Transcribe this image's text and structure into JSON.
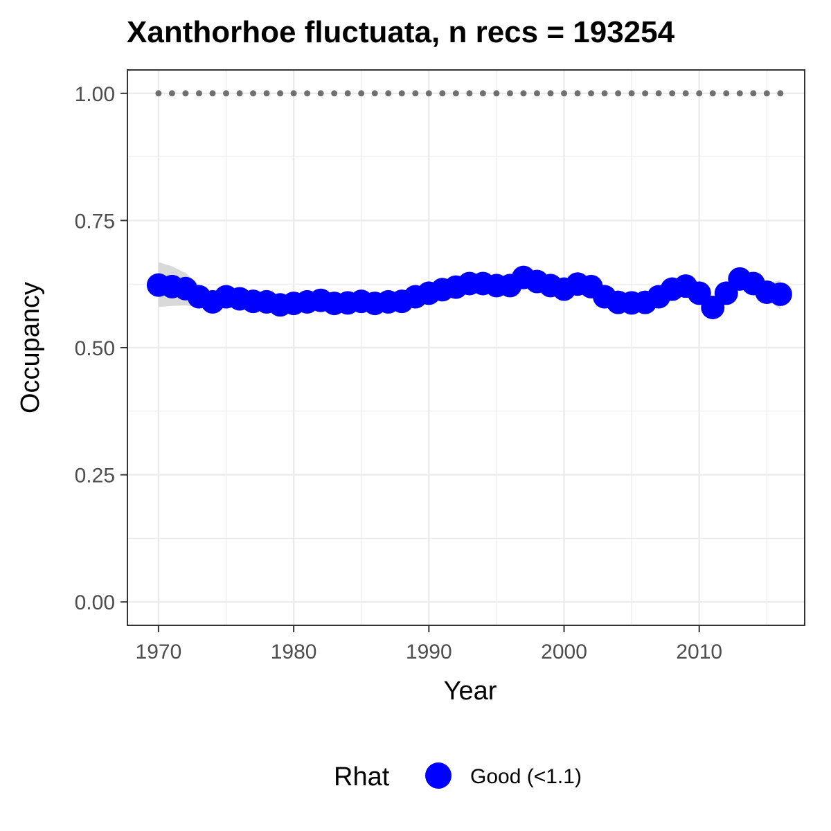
{
  "chart_data": {
    "type": "line",
    "title": "Xanthorhoe fluctuata, n recs = 193254",
    "xlabel": "Year",
    "ylabel": "Occupancy",
    "xlim": [
      1967.7,
      2017.8
    ],
    "ylim": [
      -0.046,
      1.046
    ],
    "x_ticks": [
      1970,
      1980,
      1990,
      2000,
      2010
    ],
    "x_tick_labels": [
      "1970",
      "1980",
      "1990",
      "2000",
      "2010"
    ],
    "y_ticks": [
      0,
      0.25,
      0.5,
      0.75,
      1.0
    ],
    "y_tick_labels": [
      "0.00",
      "0.25",
      "0.50",
      "0.75",
      "1.00"
    ],
    "grid": true,
    "legend": {
      "title": "Rhat",
      "position": "bottom",
      "entries": [
        {
          "label": "Good (<1.1)",
          "color": "#0000ff"
        }
      ]
    },
    "colors": {
      "series": "#0000ff",
      "ribbon": "#cccccc",
      "reference": "#707070",
      "grid": "#ebebeb",
      "panel_border": "#333333"
    },
    "series": [
      {
        "years": [
          1970,
          1971,
          1972,
          1973,
          1974,
          1975,
          1976,
          1977,
          1978,
          1979,
          1980,
          1981,
          1982,
          1983,
          1984,
          1985,
          1986,
          1987,
          1988,
          1989,
          1990,
          1991,
          1992,
          1993,
          1994,
          1995,
          1996,
          1997,
          1998,
          1999,
          2000,
          2001,
          2002,
          2003,
          2004,
          2005,
          2006,
          2007,
          2008,
          2009,
          2010,
          2011,
          2012,
          2013,
          2014,
          2015,
          2016
        ],
        "occupancy": [
          0.623,
          0.62,
          0.616,
          0.6,
          0.59,
          0.6,
          0.596,
          0.591,
          0.59,
          0.584,
          0.587,
          0.59,
          0.593,
          0.587,
          0.588,
          0.591,
          0.587,
          0.59,
          0.591,
          0.6,
          0.607,
          0.614,
          0.619,
          0.626,
          0.626,
          0.622,
          0.622,
          0.638,
          0.63,
          0.622,
          0.615,
          0.625,
          0.62,
          0.6,
          0.589,
          0.588,
          0.589,
          0.6,
          0.615,
          0.621,
          0.607,
          0.579,
          0.607,
          0.635,
          0.626,
          0.609,
          0.605
        ],
        "lower": [
          0.58,
          0.582,
          0.583,
          0.58,
          0.575,
          0.578,
          0.578,
          0.576,
          0.575,
          0.573,
          0.575,
          0.578,
          0.578,
          0.577,
          0.578,
          0.578,
          0.578,
          0.579,
          0.581,
          0.586,
          0.592,
          0.6,
          0.605,
          0.61,
          0.612,
          0.61,
          0.612,
          0.62,
          0.615,
          0.61,
          0.605,
          0.608,
          0.603,
          0.588,
          0.579,
          0.578,
          0.579,
          0.587,
          0.599,
          0.605,
          0.593,
          0.572,
          0.593,
          0.616,
          0.61,
          0.595,
          0.575
        ],
        "upper": [
          0.668,
          0.66,
          0.647,
          0.623,
          0.606,
          0.618,
          0.614,
          0.607,
          0.606,
          0.597,
          0.6,
          0.603,
          0.606,
          0.6,
          0.601,
          0.604,
          0.6,
          0.603,
          0.604,
          0.613,
          0.621,
          0.628,
          0.633,
          0.641,
          0.64,
          0.636,
          0.634,
          0.652,
          0.645,
          0.636,
          0.627,
          0.638,
          0.634,
          0.614,
          0.6,
          0.6,
          0.601,
          0.613,
          0.629,
          0.636,
          0.622,
          0.589,
          0.621,
          0.653,
          0.642,
          0.624,
          0.633
        ],
        "reference_value": 1.0
      }
    ]
  }
}
